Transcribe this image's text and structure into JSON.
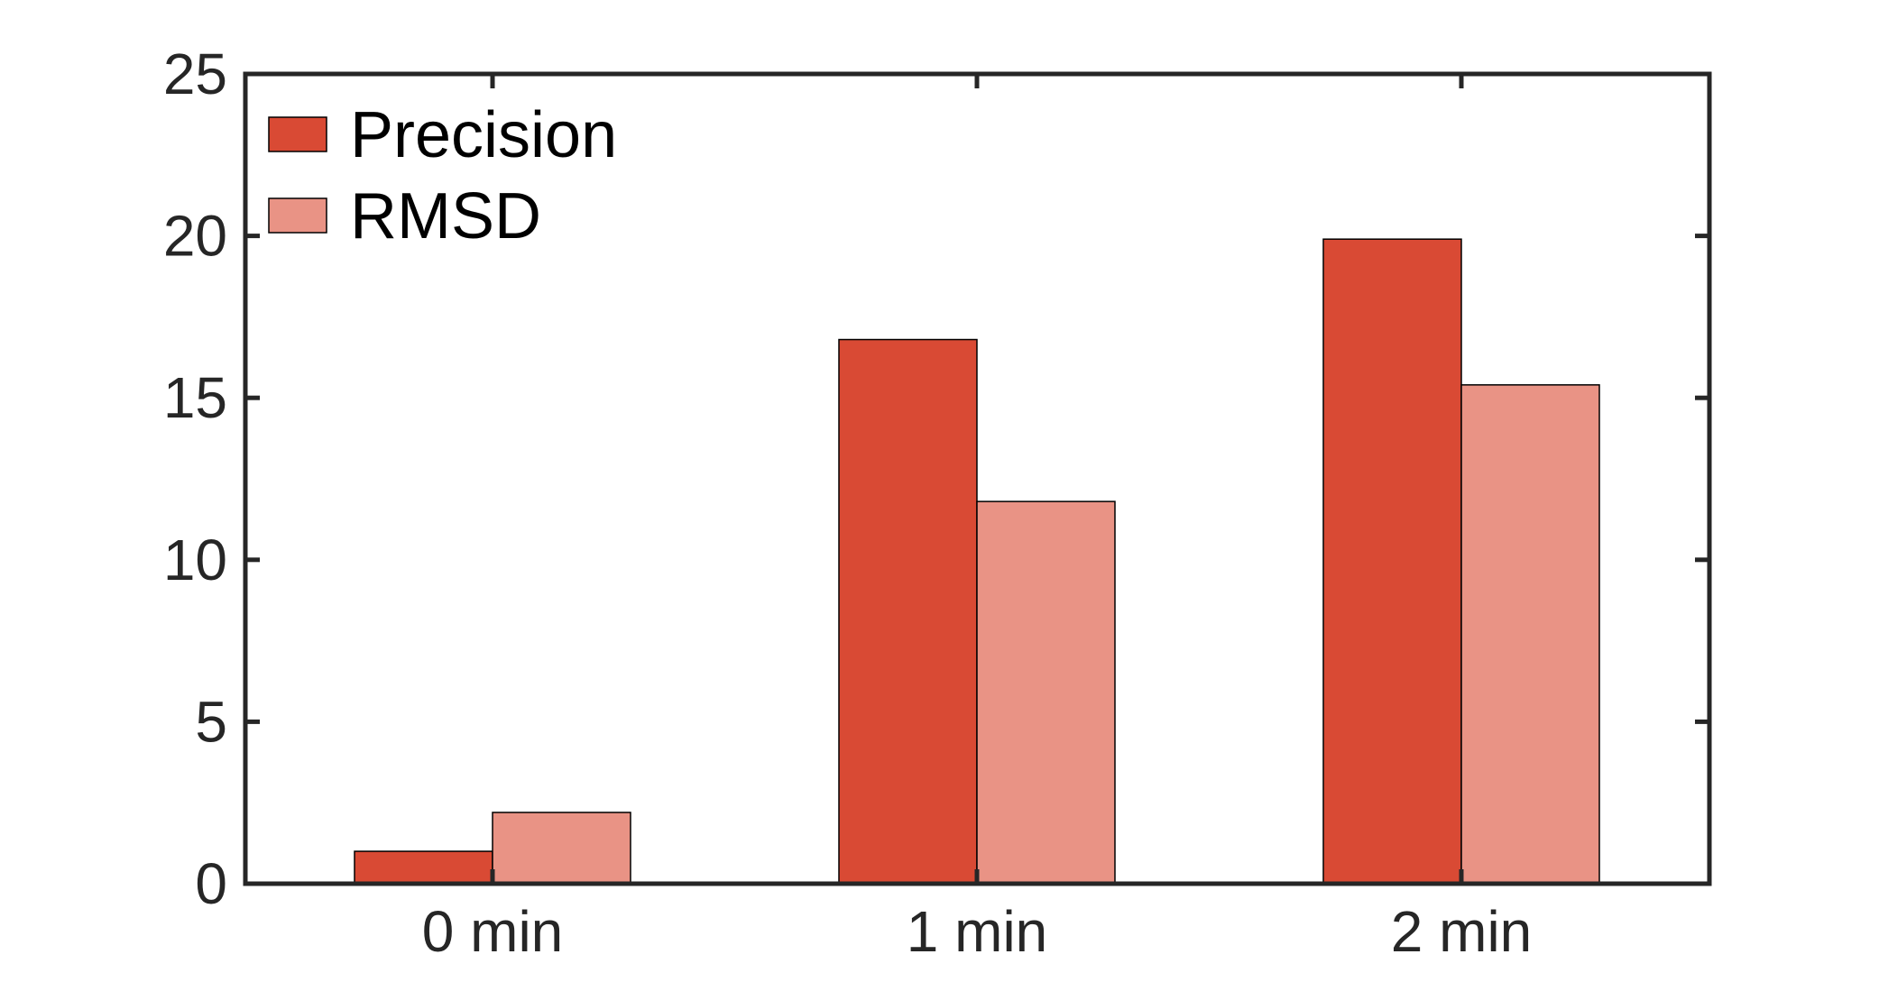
{
  "chart_data": {
    "type": "bar",
    "title": "",
    "xlabel": "",
    "ylabel": "",
    "categories": [
      "0 min",
      "1 min",
      "2 min"
    ],
    "series": [
      {
        "name": "Precision",
        "values": [
          1.0,
          16.8,
          19.9
        ],
        "color": "#d94a34"
      },
      {
        "name": "RMSD",
        "values": [
          2.2,
          11.8,
          15.4
        ],
        "color": "#e99385"
      }
    ],
    "ylim": [
      0,
      25
    ],
    "yticks": [
      0,
      5,
      10,
      15,
      20,
      25
    ],
    "ytick_labels": [
      "0",
      "5",
      "10",
      "15",
      "20",
      "25"
    ],
    "grid": false,
    "box": true,
    "legend_position": "top-left"
  }
}
